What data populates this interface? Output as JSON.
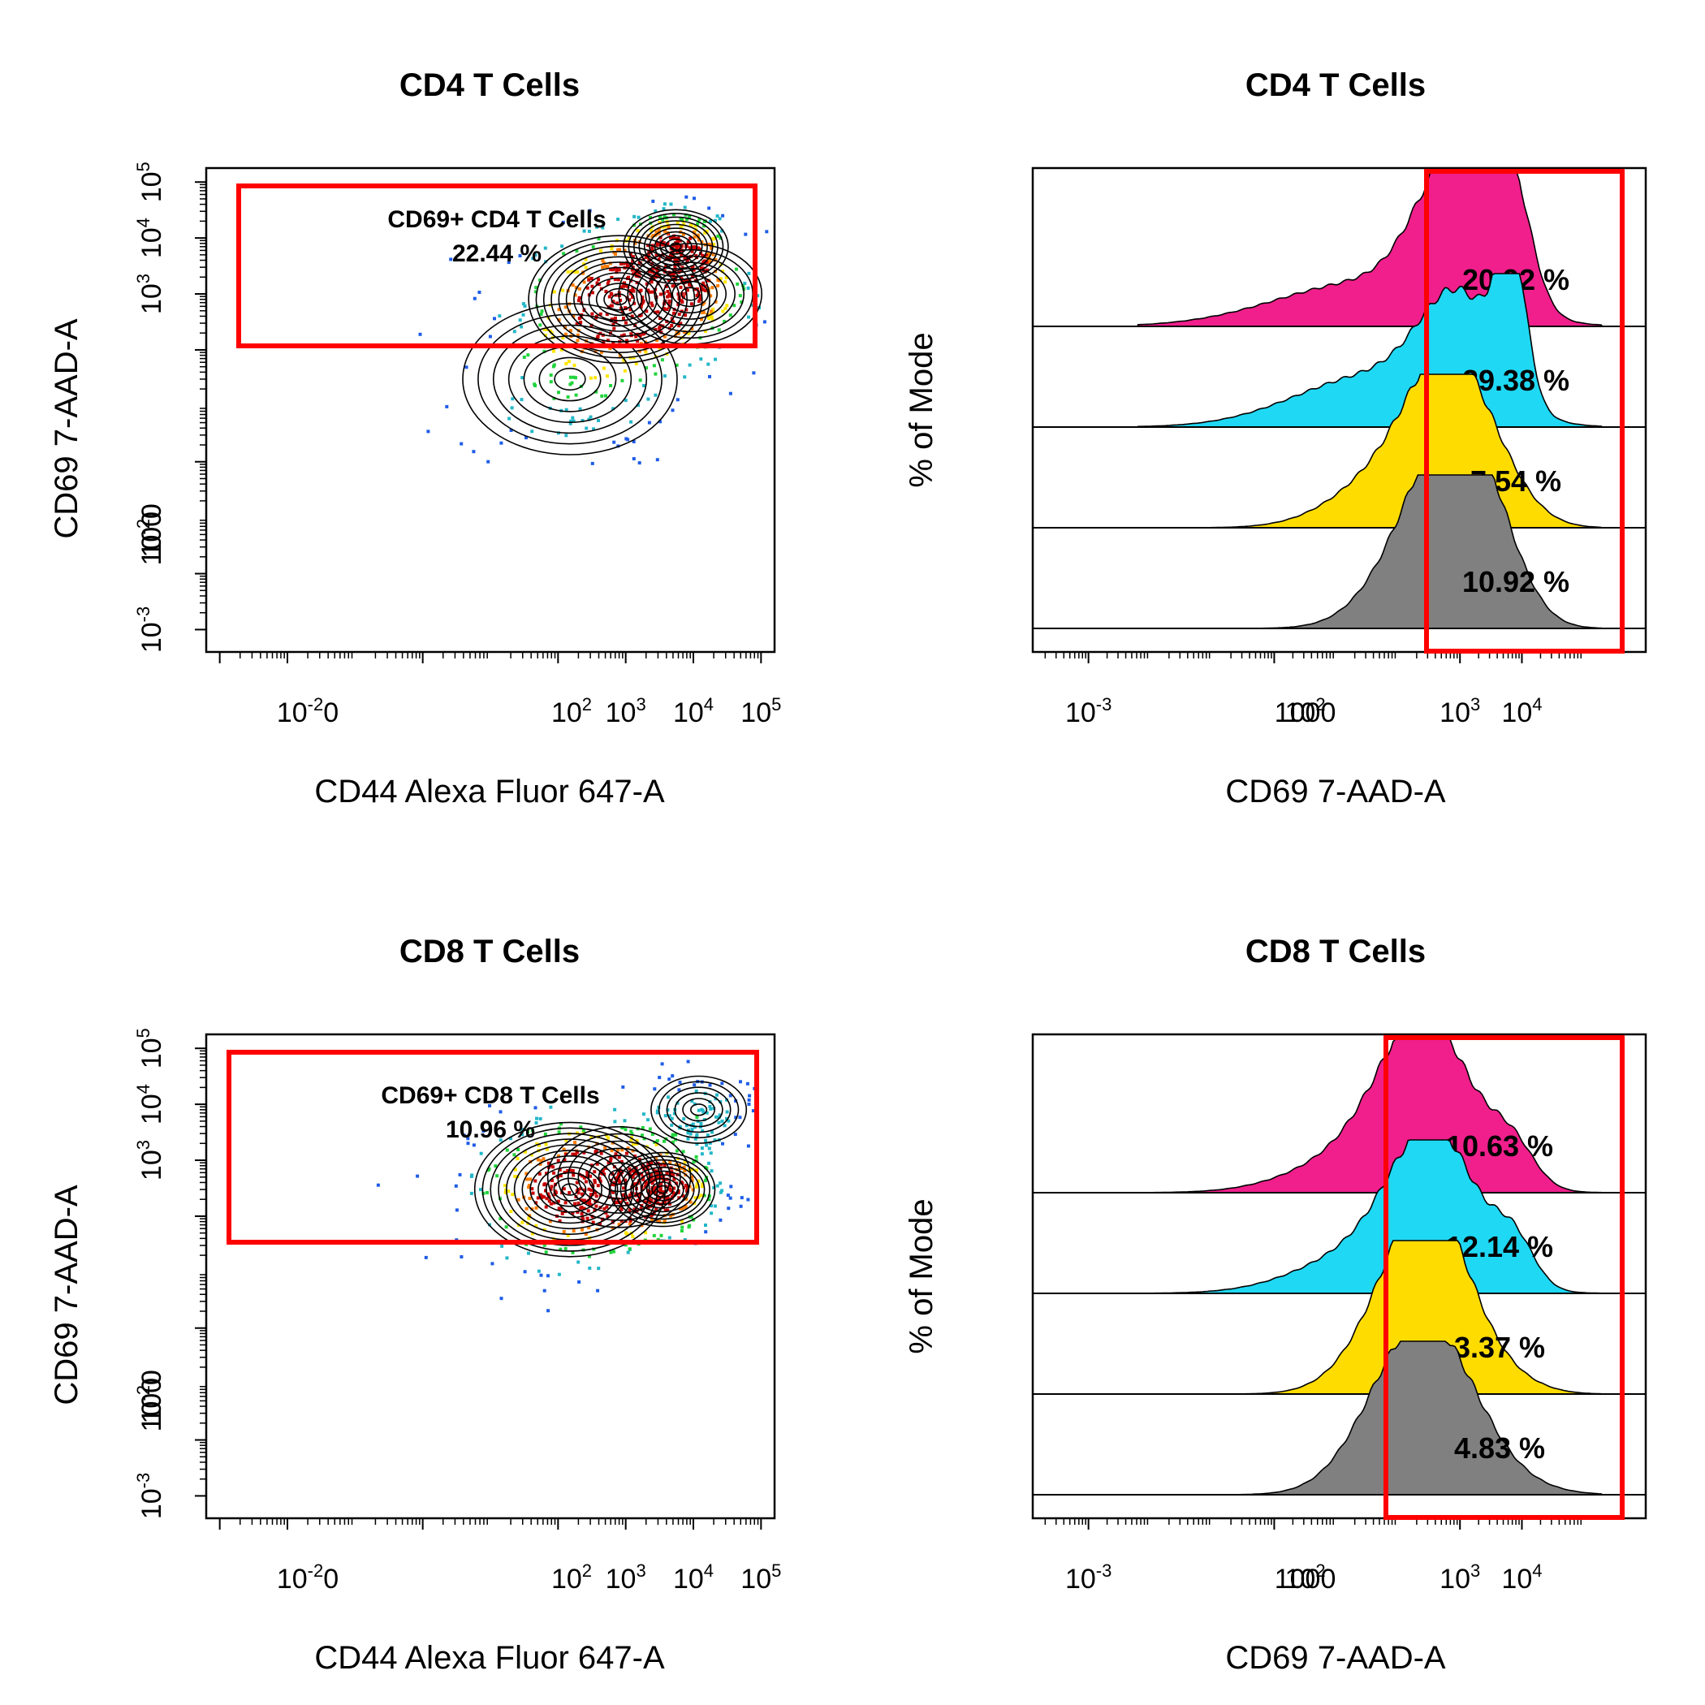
{
  "colors": {
    "gate": "#ff0000",
    "hist": [
      "#f01f8c",
      "#1fd8f4",
      "#ffdc00",
      "#808080"
    ],
    "density_ramp": [
      "#1e5de6",
      "#23b7c8",
      "#21d43c",
      "#ffe500",
      "#ff7d00",
      "#c80000"
    ]
  },
  "chart_data": [
    {
      "type": "contour",
      "title": "CD4 T Cells",
      "xlabel": "CD44 Alexa Fluor 647-A",
      "ylabel": "CD69 7-AAD-A",
      "xticks": [
        {
          "base": "10",
          "exp": "-2",
          "rest": "0"
        },
        {
          "base": "10",
          "exp": "2",
          "rest": ""
        },
        {
          "base": "10",
          "exp": "3",
          "rest": ""
        },
        {
          "base": "10",
          "exp": "4",
          "rest": ""
        },
        {
          "base": "10",
          "exp": "5",
          "rest": ""
        }
      ],
      "yticks": [
        {
          "base": "10",
          "exp": "-3",
          "rest": ""
        },
        {
          "base": "10",
          "exp": "-2",
          "rest": "0",
          "overlay": "100"
        },
        {
          "base": "10",
          "exp": "3",
          "rest": ""
        },
        {
          "base": "10",
          "exp": "4",
          "rest": ""
        },
        {
          "base": "10",
          "exp": "5",
          "rest": ""
        }
      ],
      "gate": {
        "label": "CD69+ CD4 T Cells",
        "percent": "22.44 %",
        "xrange": [
          0.005,
          100000
        ],
        "yrange": [
          4000,
          120000
        ]
      },
      "populations": [
        {
          "x": 800,
          "y": 800,
          "weight": 1.0,
          "spread": 0.38
        },
        {
          "x": 5500,
          "y": 7000,
          "weight": 0.7,
          "spread": 0.22
        },
        {
          "x": 9000,
          "y": 1000,
          "weight": 0.45,
          "spread": 0.3
        },
        {
          "x": 150,
          "y": 30,
          "weight": 0.35,
          "spread": 0.45
        }
      ]
    },
    {
      "type": "stacked_histogram",
      "title": "CD4 T Cells",
      "xlabel": "CD69 7-AAD-A",
      "ylabel": "% of Mode",
      "xticks": [
        {
          "base": "10",
          "exp": "-3",
          "rest": ""
        },
        {
          "base": "10",
          "exp": "2",
          "rest": "",
          "overlay": "1000"
        },
        {
          "base": "10",
          "exp": "3",
          "rest": ""
        },
        {
          "base": "10",
          "exp": "4",
          "rest": ""
        }
      ],
      "gate": {
        "xrange": [
          4000,
          80000
        ]
      },
      "series": [
        {
          "percent": "20.92 %",
          "peaks": [
            [
              900,
              1.0,
              0.35
            ],
            [
              6500,
              0.72,
              0.18
            ],
            [
              30,
              0.3,
              0.8
            ]
          ]
        },
        {
          "percent": "29.38 %",
          "peaks": [
            [
              1000,
              0.75,
              0.35
            ],
            [
              6800,
              0.95,
              0.13
            ],
            [
              40,
              0.35,
              0.7
            ]
          ]
        },
        {
          "percent": "7.54 %",
          "peaks": [
            [
              700,
              0.92,
              0.35
            ],
            [
              100,
              0.4,
              0.5
            ],
            [
              5000,
              0.15,
              0.3
            ]
          ]
        },
        {
          "percent": "10.92 %",
          "peaks": [
            [
              900,
              0.9,
              0.35
            ],
            [
              200,
              0.5,
              0.4
            ],
            [
              3000,
              0.35,
              0.3
            ]
          ]
        }
      ]
    },
    {
      "type": "contour",
      "title": "CD8 T Cells",
      "xlabel": "CD44 Alexa Fluor 647-A",
      "ylabel": "CD69 7-AAD-A",
      "xticks": [
        {
          "base": "10",
          "exp": "-2",
          "rest": "0"
        },
        {
          "base": "10",
          "exp": "2",
          "rest": ""
        },
        {
          "base": "10",
          "exp": "3",
          "rest": ""
        },
        {
          "base": "10",
          "exp": "4",
          "rest": ""
        },
        {
          "base": "10",
          "exp": "5",
          "rest": ""
        }
      ],
      "yticks": [
        {
          "base": "10",
          "exp": "-3",
          "rest": ""
        },
        {
          "base": "10",
          "exp": "-2",
          "rest": "0",
          "overlay": "100"
        },
        {
          "base": "10",
          "exp": "3",
          "rest": ""
        },
        {
          "base": "10",
          "exp": "4",
          "rest": ""
        },
        {
          "base": "10",
          "exp": "5",
          "rest": ""
        }
      ],
      "gate": {
        "label": "CD69+ CD8 T Cells",
        "percent": "10.96 %",
        "xrange": [
          0.002,
          100000
        ],
        "yrange": [
          2500,
          110000
        ]
      },
      "populations": [
        {
          "x": 150,
          "y": 300,
          "weight": 1.0,
          "spread": 0.4
        },
        {
          "x": 3500,
          "y": 300,
          "weight": 0.75,
          "spread": 0.22
        },
        {
          "x": 12000,
          "y": 8000,
          "weight": 0.3,
          "spread": 0.2
        },
        {
          "x": 800,
          "y": 500,
          "weight": 0.35,
          "spread": 0.3
        }
      ]
    },
    {
      "type": "stacked_histogram",
      "title": "CD8 T Cells",
      "xlabel": "CD69 7-AAD-A",
      "ylabel": "% of Mode",
      "xticks": [
        {
          "base": "10",
          "exp": "-3",
          "rest": ""
        },
        {
          "base": "10",
          "exp": "2",
          "rest": "",
          "overlay": "1000"
        },
        {
          "base": "10",
          "exp": "3",
          "rest": ""
        },
        {
          "base": "10",
          "exp": "4",
          "rest": ""
        }
      ],
      "gate": {
        "xrange": [
          2000,
          80000
        ]
      },
      "series": [
        {
          "percent": "10.63 %",
          "peaks": [
            [
              300,
              1.0,
              0.4
            ],
            [
              7000,
              0.25,
              0.2
            ],
            [
              40,
              0.3,
              0.6
            ]
          ]
        },
        {
          "percent": "12.14 %",
          "peaks": [
            [
              400,
              0.95,
              0.38
            ],
            [
              7500,
              0.28,
              0.18
            ],
            [
              40,
              0.3,
              0.6
            ]
          ]
        },
        {
          "percent": "3.37 %",
          "peaks": [
            [
              400,
              0.95,
              0.35
            ],
            [
              100,
              0.5,
              0.4
            ],
            [
              6000,
              0.08,
              0.3
            ]
          ]
        },
        {
          "percent": "4.83 %",
          "peaks": [
            [
              400,
              0.85,
              0.4
            ],
            [
              80,
              0.45,
              0.4
            ],
            [
              4000,
              0.08,
              0.4
            ]
          ]
        }
      ]
    }
  ]
}
